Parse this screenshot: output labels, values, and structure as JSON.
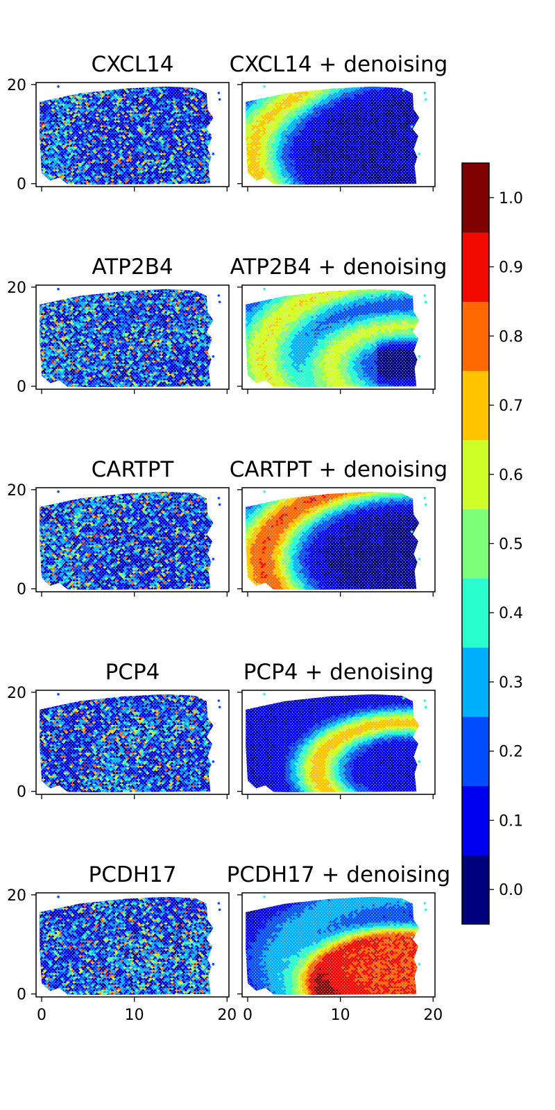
{
  "chart_data": {
    "type": "heatmap",
    "colorbar": {
      "boundaries": [
        -0.05,
        0.05,
        0.15,
        0.25,
        0.35,
        0.45,
        0.55,
        0.65,
        0.75,
        0.85,
        0.95,
        1.05
      ],
      "colors": [
        "#00007f",
        "#0000f1",
        "#004cff",
        "#00b0ff",
        "#29ffce",
        "#7dff7a",
        "#ceff29",
        "#ffc400",
        "#ff6800",
        "#f10800",
        "#7f0000"
      ],
      "ticks": [
        "0.0",
        "0.1",
        "0.2",
        "0.3",
        "0.4",
        "0.5",
        "0.6",
        "0.7",
        "0.8",
        "0.9",
        "1.0"
      ]
    },
    "xlim": [
      -0.6,
      20.2
    ],
    "ylim": [
      -0.6,
      20.4
    ],
    "xticks": [
      "0",
      "10",
      "20"
    ],
    "yticks": [
      "0",
      "20"
    ],
    "panels": [
      {
        "gene": "CXCL14",
        "raw_title": "CXCL14",
        "denoised_title": "CXCL14 + denoising",
        "pattern": "outer-arc",
        "raw_mean": 0.18,
        "denoised_peak": 0.9
      },
      {
        "gene": "ATP2B4",
        "raw_title": "ATP2B4",
        "denoised_title": "ATP2B4 + denoising",
        "pattern": "multi-arc",
        "raw_mean": 0.25,
        "denoised_peak": 0.85
      },
      {
        "gene": "CARTPT",
        "raw_title": "CARTPT",
        "denoised_title": "CARTPT + denoising",
        "pattern": "outer-arc-strong",
        "raw_mean": 0.12,
        "denoised_peak": 0.95
      },
      {
        "gene": "PCP4",
        "raw_title": "PCP4",
        "denoised_title": "PCP4 + denoising",
        "pattern": "inner-arc",
        "raw_mean": 0.15,
        "denoised_peak": 0.85
      },
      {
        "gene": "PCDH17",
        "raw_title": "PCDH17",
        "denoised_title": "PCDH17 + denoising",
        "pattern": "core",
        "raw_mean": 0.12,
        "denoised_peak": 1.0
      }
    ]
  }
}
